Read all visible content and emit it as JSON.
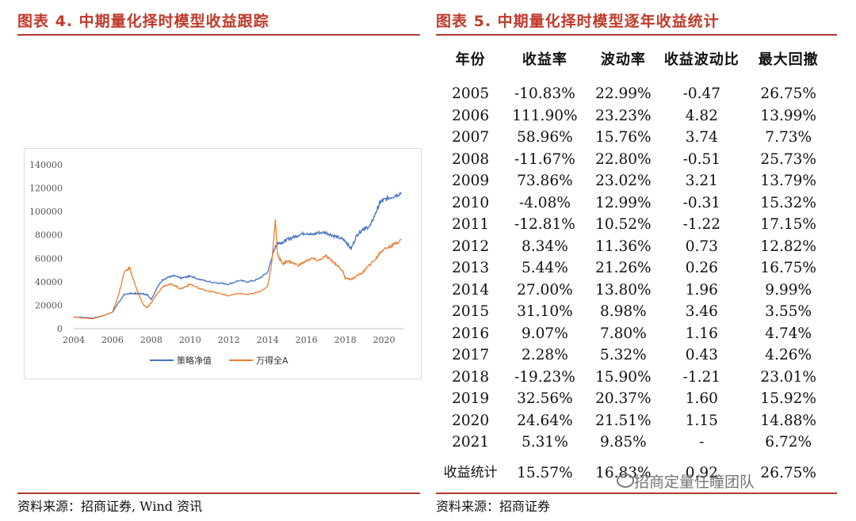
{
  "left": {
    "title": "图表 4. 中期量化择时模型收益跟踪",
    "source": "资料来源：招商证券, Wind 资讯"
  },
  "right": {
    "title": "图表 5. 中期量化择时模型逐年收益统计",
    "source": "资料来源：招商证券"
  },
  "table": {
    "headers": [
      "年份",
      "收益率",
      "波动率",
      "收益波动比",
      "最大回撤"
    ],
    "rows": [
      [
        "2005",
        "-10.83%",
        "22.99%",
        "-0.47",
        "26.75%"
      ],
      [
        "2006",
        "111.90%",
        "23.23%",
        "4.82",
        "13.99%"
      ],
      [
        "2007",
        "58.96%",
        "15.76%",
        "3.74",
        "7.73%"
      ],
      [
        "2008",
        "-11.67%",
        "22.80%",
        "-0.51",
        "25.73%"
      ],
      [
        "2009",
        "73.86%",
        "23.02%",
        "3.21",
        "13.79%"
      ],
      [
        "2010",
        "-4.08%",
        "12.99%",
        "-0.31",
        "15.32%"
      ],
      [
        "2011",
        "-12.81%",
        "10.52%",
        "-1.22",
        "17.15%"
      ],
      [
        "2012",
        "8.34%",
        "11.36%",
        "0.73",
        "12.82%"
      ],
      [
        "2013",
        "5.44%",
        "21.26%",
        "0.26",
        "16.75%"
      ],
      [
        "2014",
        "27.00%",
        "13.80%",
        "1.96",
        "9.99%"
      ],
      [
        "2015",
        "31.10%",
        "8.98%",
        "3.46",
        "3.55%"
      ],
      [
        "2016",
        "9.07%",
        "7.80%",
        "1.16",
        "4.74%"
      ],
      [
        "2017",
        "2.28%",
        "5.32%",
        "0.43",
        "4.26%"
      ],
      [
        "2018",
        "-19.23%",
        "15.90%",
        "-1.21",
        "23.01%"
      ],
      [
        "2019",
        "32.56%",
        "20.37%",
        "1.60",
        "15.92%"
      ],
      [
        "2020",
        "24.64%",
        "21.51%",
        "1.15",
        "14.88%"
      ],
      [
        "2021",
        "5.31%",
        "9.85%",
        "-",
        "6.72%"
      ]
    ],
    "summary": [
      "收益统计",
      "15.57%",
      "16.83%",
      "0.92",
      "26.75%"
    ]
  },
  "watermark": "招商定量任瞳团队",
  "chart_data": {
    "type": "line",
    "x": [
      2004.0,
      2004.5,
      2005.0,
      2005.5,
      2006.0,
      2006.3,
      2006.6,
      2006.9,
      2007.0,
      2007.2,
      2007.4,
      2007.6,
      2007.8,
      2008.0,
      2008.3,
      2008.6,
      2008.9,
      2009.2,
      2009.5,
      2009.8,
      2010.0,
      2010.5,
      2011.0,
      2011.5,
      2012.0,
      2012.5,
      2013.0,
      2013.5,
      2014.0,
      2014.2,
      2014.4,
      2014.5,
      2014.6,
      2014.8,
      2015.0,
      2015.3,
      2015.6,
      2016.0,
      2016.3,
      2016.6,
      2017.0,
      2017.3,
      2017.6,
      2017.9,
      2018.0,
      2018.3,
      2018.6,
      2018.9,
      2019.0,
      2019.3,
      2019.6,
      2019.8,
      2020.0,
      2020.3,
      2020.6,
      2020.9
    ],
    "series": [
      {
        "name": "策略净值",
        "color": "#4472c4",
        "values": [
          10000,
          9500,
          9000,
          11000,
          14000,
          22000,
          29000,
          30000,
          30000,
          30000,
          30000,
          29500,
          29000,
          25000,
          35000,
          42000,
          44000,
          45000,
          43000,
          44000,
          45000,
          42000,
          40000,
          39000,
          38000,
          41000,
          40000,
          42000,
          48000,
          60000,
          70000,
          73000,
          73000,
          74000,
          76000,
          78000,
          80000,
          82000,
          80000,
          82000,
          82000,
          80000,
          78000,
          76000,
          75000,
          68000,
          80000,
          85000,
          85000,
          88000,
          100000,
          108000,
          110000,
          112000,
          114000,
          116000
        ]
      },
      {
        "name": "万得全A",
        "color": "#ed7d31",
        "values": [
          10000,
          9000,
          8500,
          11000,
          14000,
          28000,
          48000,
          52000,
          45000,
          36000,
          27000,
          20000,
          18000,
          22000,
          30000,
          36000,
          38000,
          37000,
          34000,
          36000,
          38000,
          34000,
          32000,
          30000,
          28000,
          30000,
          29000,
          31000,
          36000,
          55000,
          93000,
          65000,
          60000,
          55000,
          58000,
          56000,
          54000,
          58000,
          60000,
          58000,
          62000,
          58000,
          54000,
          48000,
          43000,
          42000,
          45000,
          48000,
          50000,
          55000,
          60000,
          65000,
          68000,
          70000,
          73000,
          76000
        ]
      }
    ],
    "xlim": [
      2004,
      2021
    ],
    "ylim": [
      0,
      140000
    ],
    "xticks": [
      "2004",
      "2006",
      "2008",
      "2010",
      "2012",
      "2014",
      "2016",
      "2018",
      "2020"
    ],
    "yticks": [
      "0",
      "20000",
      "40000",
      "60000",
      "80000",
      "100000",
      "120000",
      "140000"
    ],
    "legend": "bottom"
  }
}
